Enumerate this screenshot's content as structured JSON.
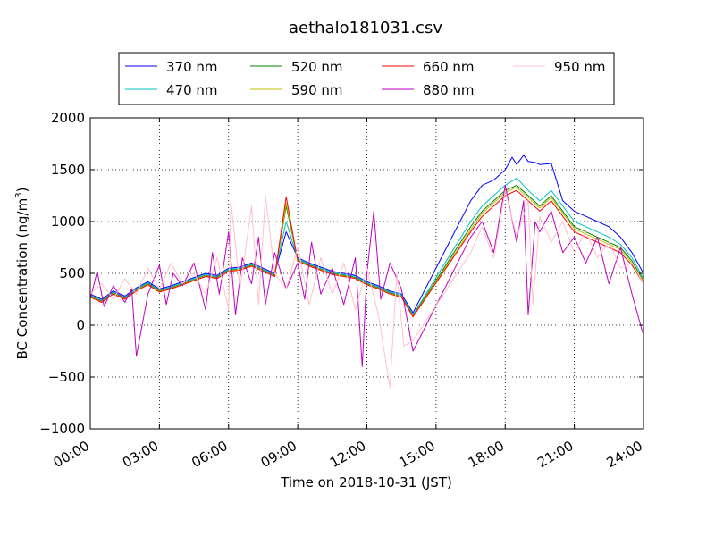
{
  "chart_data": {
    "type": "line",
    "title": "aethalo181031.csv",
    "xlabel": "Time on 2018-10-31 (JST)",
    "ylabel_main": "BC Concentration (ng/m",
    "ylabel_sup": "3",
    "ylabel_end": ")",
    "xlim": [
      0,
      24
    ],
    "ylim": [
      -1000,
      2000
    ],
    "x_unit": "hours",
    "x_ticks": [
      0,
      3,
      6,
      9,
      12,
      15,
      18,
      21,
      24
    ],
    "x_tick_labels": [
      "00:00",
      "03:00",
      "06:00",
      "09:00",
      "12:00",
      "15:00",
      "18:00",
      "21:00",
      "24:00"
    ],
    "y_ticks": [
      -1000,
      -500,
      0,
      500,
      1000,
      1500,
      2000
    ],
    "y_tick_labels": [
      "−1000",
      "−500",
      "0",
      "500",
      "1000",
      "1500",
      "2000"
    ],
    "grid": true,
    "legend_position": "top",
    "series": [
      {
        "name": "370 nm",
        "color": "#0000ff",
        "x": [
          0.0,
          0.5,
          1.0,
          1.5,
          2.0,
          2.5,
          3.0,
          3.5,
          4.0,
          4.5,
          5.0,
          5.5,
          6.0,
          6.5,
          7.0,
          7.5,
          8.0,
          8.5,
          9.0,
          9.5,
          10.0,
          10.5,
          11.0,
          11.5,
          12.0,
          12.5,
          13.0,
          13.5,
          14.0,
          16.5,
          17.0,
          17.5,
          18.0,
          18.3,
          18.5,
          18.8,
          19.0,
          19.3,
          19.5,
          20.0,
          20.5,
          21.0,
          21.5,
          22.0,
          22.5,
          23.0,
          23.5,
          24.0
        ],
        "y": [
          300,
          250,
          330,
          280,
          360,
          420,
          350,
          380,
          420,
          460,
          500,
          480,
          550,
          560,
          600,
          550,
          500,
          900,
          650,
          600,
          560,
          520,
          500,
          480,
          420,
          380,
          330,
          300,
          120,
          1200,
          1350,
          1400,
          1500,
          1620,
          1550,
          1640,
          1580,
          1570,
          1550,
          1560,
          1200,
          1100,
          1050,
          1000,
          950,
          850,
          700,
          500
        ]
      },
      {
        "name": "470 nm",
        "color": "#00bfbf",
        "x": [
          0.0,
          0.5,
          1.0,
          1.5,
          2.0,
          2.5,
          3.0,
          3.5,
          4.0,
          4.5,
          5.0,
          5.5,
          6.0,
          6.5,
          7.0,
          7.5,
          8.0,
          8.5,
          9.0,
          9.5,
          10.0,
          10.5,
          11.0,
          11.5,
          12.0,
          12.5,
          13.0,
          13.5,
          14.0,
          16.5,
          17.0,
          17.5,
          18.0,
          18.5,
          19.0,
          19.5,
          20.0,
          20.5,
          21.0,
          21.5,
          22.0,
          22.5,
          23.0,
          23.5,
          24.0
        ],
        "y": [
          290,
          240,
          320,
          270,
          350,
          410,
          340,
          370,
          410,
          450,
          490,
          470,
          540,
          550,
          590,
          540,
          490,
          1000,
          640,
          590,
          550,
          510,
          490,
          470,
          410,
          370,
          320,
          290,
          100,
          1000,
          1150,
          1250,
          1350,
          1420,
          1300,
          1200,
          1300,
          1150,
          1000,
          950,
          900,
          850,
          780,
          650,
          450
        ]
      },
      {
        "name": "520 nm",
        "color": "#008000",
        "x": [
          0.0,
          0.5,
          1.0,
          1.5,
          2.0,
          2.5,
          3.0,
          3.5,
          4.0,
          4.5,
          5.0,
          5.5,
          6.0,
          6.5,
          7.0,
          7.5,
          8.0,
          8.5,
          9.0,
          9.5,
          10.0,
          10.5,
          11.0,
          11.5,
          12.0,
          12.5,
          13.0,
          13.5,
          14.0,
          16.5,
          17.0,
          17.5,
          18.0,
          18.5,
          19.0,
          19.5,
          20.0,
          20.5,
          21.0,
          21.5,
          22.0,
          22.5,
          23.0,
          23.5,
          24.0
        ],
        "y": [
          280,
          230,
          310,
          260,
          340,
          400,
          330,
          360,
          400,
          440,
          480,
          460,
          530,
          540,
          580,
          530,
          480,
          1150,
          630,
          580,
          540,
          500,
          480,
          460,
          400,
          360,
          310,
          280,
          90,
          950,
          1100,
          1200,
          1300,
          1350,
          1250,
          1150,
          1250,
          1100,
          950,
          900,
          850,
          800,
          750,
          620,
          430
        ]
      },
      {
        "name": "590 nm",
        "color": "#bfbf00",
        "x": [
          0.0,
          0.5,
          1.0,
          1.5,
          2.0,
          2.5,
          3.0,
          3.5,
          4.0,
          4.5,
          5.0,
          5.5,
          6.0,
          6.5,
          7.0,
          7.5,
          8.0,
          8.5,
          9.0,
          9.5,
          10.0,
          10.5,
          11.0,
          11.5,
          12.0,
          12.5,
          13.0,
          13.5,
          14.0,
          16.5,
          17.0,
          17.5,
          18.0,
          18.5,
          19.0,
          19.5,
          20.0,
          20.5,
          21.0,
          21.5,
          22.0,
          22.5,
          23.0,
          23.5,
          24.0
        ],
        "y": [
          275,
          225,
          305,
          255,
          335,
          395,
          325,
          355,
          395,
          435,
          475,
          455,
          525,
          535,
          575,
          525,
          475,
          1180,
          625,
          575,
          535,
          495,
          475,
          455,
          395,
          355,
          305,
          275,
          85,
          920,
          1080,
          1180,
          1280,
          1330,
          1230,
          1130,
          1230,
          1080,
          930,
          880,
          830,
          780,
          730,
          600,
          420
        ]
      },
      {
        "name": "660 nm",
        "color": "#ff0000",
        "x": [
          0.0,
          0.5,
          1.0,
          1.5,
          2.0,
          2.5,
          3.0,
          3.5,
          4.0,
          4.5,
          5.0,
          5.5,
          6.0,
          6.5,
          7.0,
          7.5,
          8.0,
          8.5,
          9.0,
          9.5,
          10.0,
          10.5,
          11.0,
          11.5,
          12.0,
          12.5,
          13.0,
          13.5,
          14.0,
          16.5,
          17.0,
          17.5,
          18.0,
          18.5,
          19.0,
          19.5,
          20.0,
          20.5,
          21.0,
          21.5,
          22.0,
          22.5,
          23.0,
          23.5,
          24.0
        ],
        "y": [
          270,
          220,
          300,
          250,
          330,
          390,
          320,
          350,
          390,
          430,
          470,
          450,
          520,
          530,
          570,
          520,
          470,
          1240,
          620,
          570,
          530,
          490,
          470,
          450,
          390,
          350,
          300,
          270,
          80,
          900,
          1050,
          1150,
          1250,
          1300,
          1200,
          1100,
          1200,
          1050,
          900,
          850,
          800,
          750,
          700,
          580,
          400
        ]
      },
      {
        "name": "880 nm",
        "color": "#bf00bf",
        "x": [
          0.0,
          0.3,
          0.6,
          1.0,
          1.5,
          1.8,
          2.0,
          2.5,
          3.0,
          3.3,
          3.6,
          4.0,
          4.5,
          5.0,
          5.3,
          5.6,
          6.0,
          6.3,
          6.6,
          7.0,
          7.3,
          7.6,
          8.0,
          8.5,
          9.0,
          9.3,
          9.6,
          10.0,
          10.5,
          11.0,
          11.5,
          11.8,
          12.0,
          12.3,
          12.6,
          13.0,
          13.5,
          14.0,
          16.5,
          17.0,
          17.5,
          18.0,
          18.5,
          18.8,
          19.0,
          19.3,
          19.5,
          20.0,
          20.5,
          21.0,
          21.5,
          22.0,
          22.5,
          23.0,
          23.5,
          24.0
        ],
        "y": [
          250,
          520,
          180,
          380,
          220,
          350,
          -300,
          300,
          580,
          200,
          500,
          380,
          600,
          150,
          700,
          300,
          900,
          100,
          650,
          400,
          850,
          200,
          700,
          350,
          600,
          250,
          800,
          300,
          550,
          200,
          650,
          -400,
          500,
          1100,
          250,
          600,
          350,
          -250,
          850,
          1000,
          700,
          1350,
          800,
          1200,
          100,
          1000,
          900,
          1100,
          700,
          850,
          600,
          850,
          400,
          750,
          300,
          -100
        ]
      },
      {
        "name": "950 nm",
        "color": "#ffc0cb",
        "x": [
          0.0,
          0.5,
          1.0,
          1.5,
          2.0,
          2.5,
          3.0,
          3.5,
          4.0,
          4.5,
          5.0,
          5.5,
          6.0,
          6.1,
          6.5,
          7.0,
          7.3,
          7.6,
          8.0,
          8.5,
          9.0,
          9.5,
          10.0,
          10.5,
          11.0,
          11.5,
          12.0,
          12.5,
          13.0,
          13.3,
          13.6,
          14.0,
          16.5,
          17.0,
          17.5,
          18.0,
          18.5,
          19.0,
          19.2,
          19.5,
          20.0,
          20.5,
          21.0,
          21.5,
          22.0,
          22.5,
          23.0,
          23.5,
          24.0
        ],
        "y": [
          300,
          400,
          250,
          450,
          300,
          550,
          350,
          600,
          400,
          500,
          300,
          650,
          150,
          1200,
          350,
          1150,
          200,
          1250,
          500,
          350,
          750,
          200,
          650,
          300,
          600,
          150,
          550,
          100,
          -600,
          500,
          -200,
          -150,
          700,
          950,
          650,
          1300,
          850,
          1200,
          200,
          1050,
          800,
          1000,
          700,
          900,
          650,
          800,
          550,
          600,
          400
        ]
      }
    ]
  }
}
